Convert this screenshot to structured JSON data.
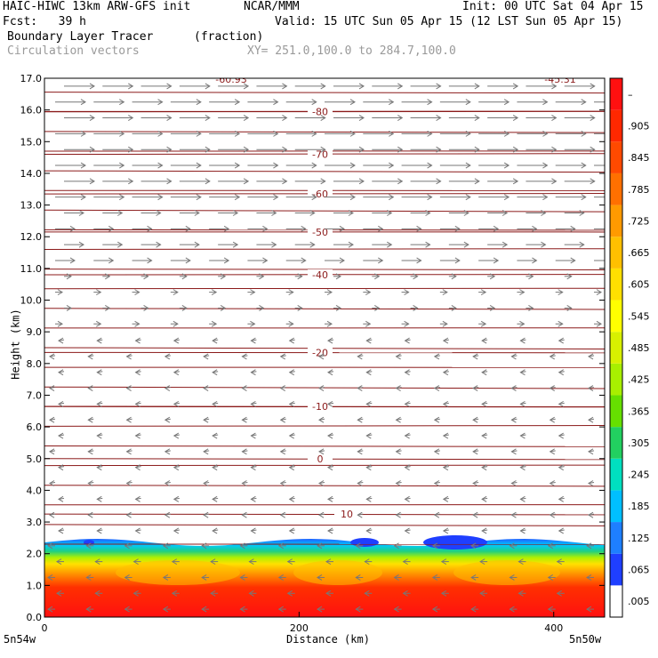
{
  "header": {
    "model": "HAIC-HIWC 13km ARW-GFS init",
    "org": "NCAR/MMM",
    "init": "Init: 00 UTC Sat 04 Apr 15",
    "fcst": "Fcst:   39 h",
    "valid": "Valid: 15 UTC Sun 05 Apr 15 (12 LST Sun 05 Apr 15)",
    "field": "Boundary Layer Tracer",
    "units": "(fraction)",
    "vectors": "Circulation vectors",
    "xsec": "XY= 251.0,100.0 to 284.7,100.0"
  },
  "chart_data": {
    "type": "heatmap",
    "ylabel": "Height (km)",
    "xlabel": "Distance (km)",
    "ylim": [
      0,
      17
    ],
    "xlim": [
      0,
      440
    ],
    "yticks": [
      "0.0",
      "1.0",
      "2.0",
      "3.0",
      "4.0",
      "5.0",
      "6.0",
      "7.0",
      "8.0",
      "9.0",
      "10.0",
      "11.0",
      "12.0",
      "13.0",
      "14.0",
      "15.0",
      "16.0",
      "17.0"
    ],
    "xticks": [
      "0",
      "200",
      "400"
    ],
    "x_tick_values": [
      0,
      200,
      400
    ],
    "left_corner": "5n54w",
    "right_corner": "5n50w",
    "colorbar_labels": [
      ".005",
      ".065",
      ".125",
      ".185",
      ".245",
      ".305",
      ".365",
      ".425",
      ".485",
      ".545",
      ".605",
      ".665",
      ".725",
      ".785",
      ".845",
      ".905",
      "–"
    ],
    "colorbar_colors": [
      "#ffffff",
      "#1f3fff",
      "#1e7fff",
      "#00bfff",
      "#00e0c0",
      "#22d060",
      "#66e000",
      "#a8ef00",
      "#d8f000",
      "#ffff00",
      "#ffe000",
      "#ffc000",
      "#ff9a00",
      "#ff7000",
      "#ff4a00",
      "#ff2800",
      "#ff1010"
    ],
    "temperature_contours": [
      {
        "label": "10",
        "z": 3.25
      },
      {
        "label": "0",
        "z": 5.0
      },
      {
        "label": "-10",
        "z": 6.65
      },
      {
        "label": "-20",
        "z": 8.35
      },
      {
        "label": "-40",
        "z": 10.8
      },
      {
        "label": "-50",
        "z": 12.15
      },
      {
        "label": "-60",
        "z": 13.35
      },
      {
        "label": "-70",
        "z": 14.6
      },
      {
        "label": "-80",
        "z": 15.95
      }
    ],
    "top_labels": [
      "-60.93",
      "-45.31"
    ],
    "tracer_top_km": 2.3,
    "contour_color": "#8b1a1a",
    "vector_color": "#777777"
  }
}
